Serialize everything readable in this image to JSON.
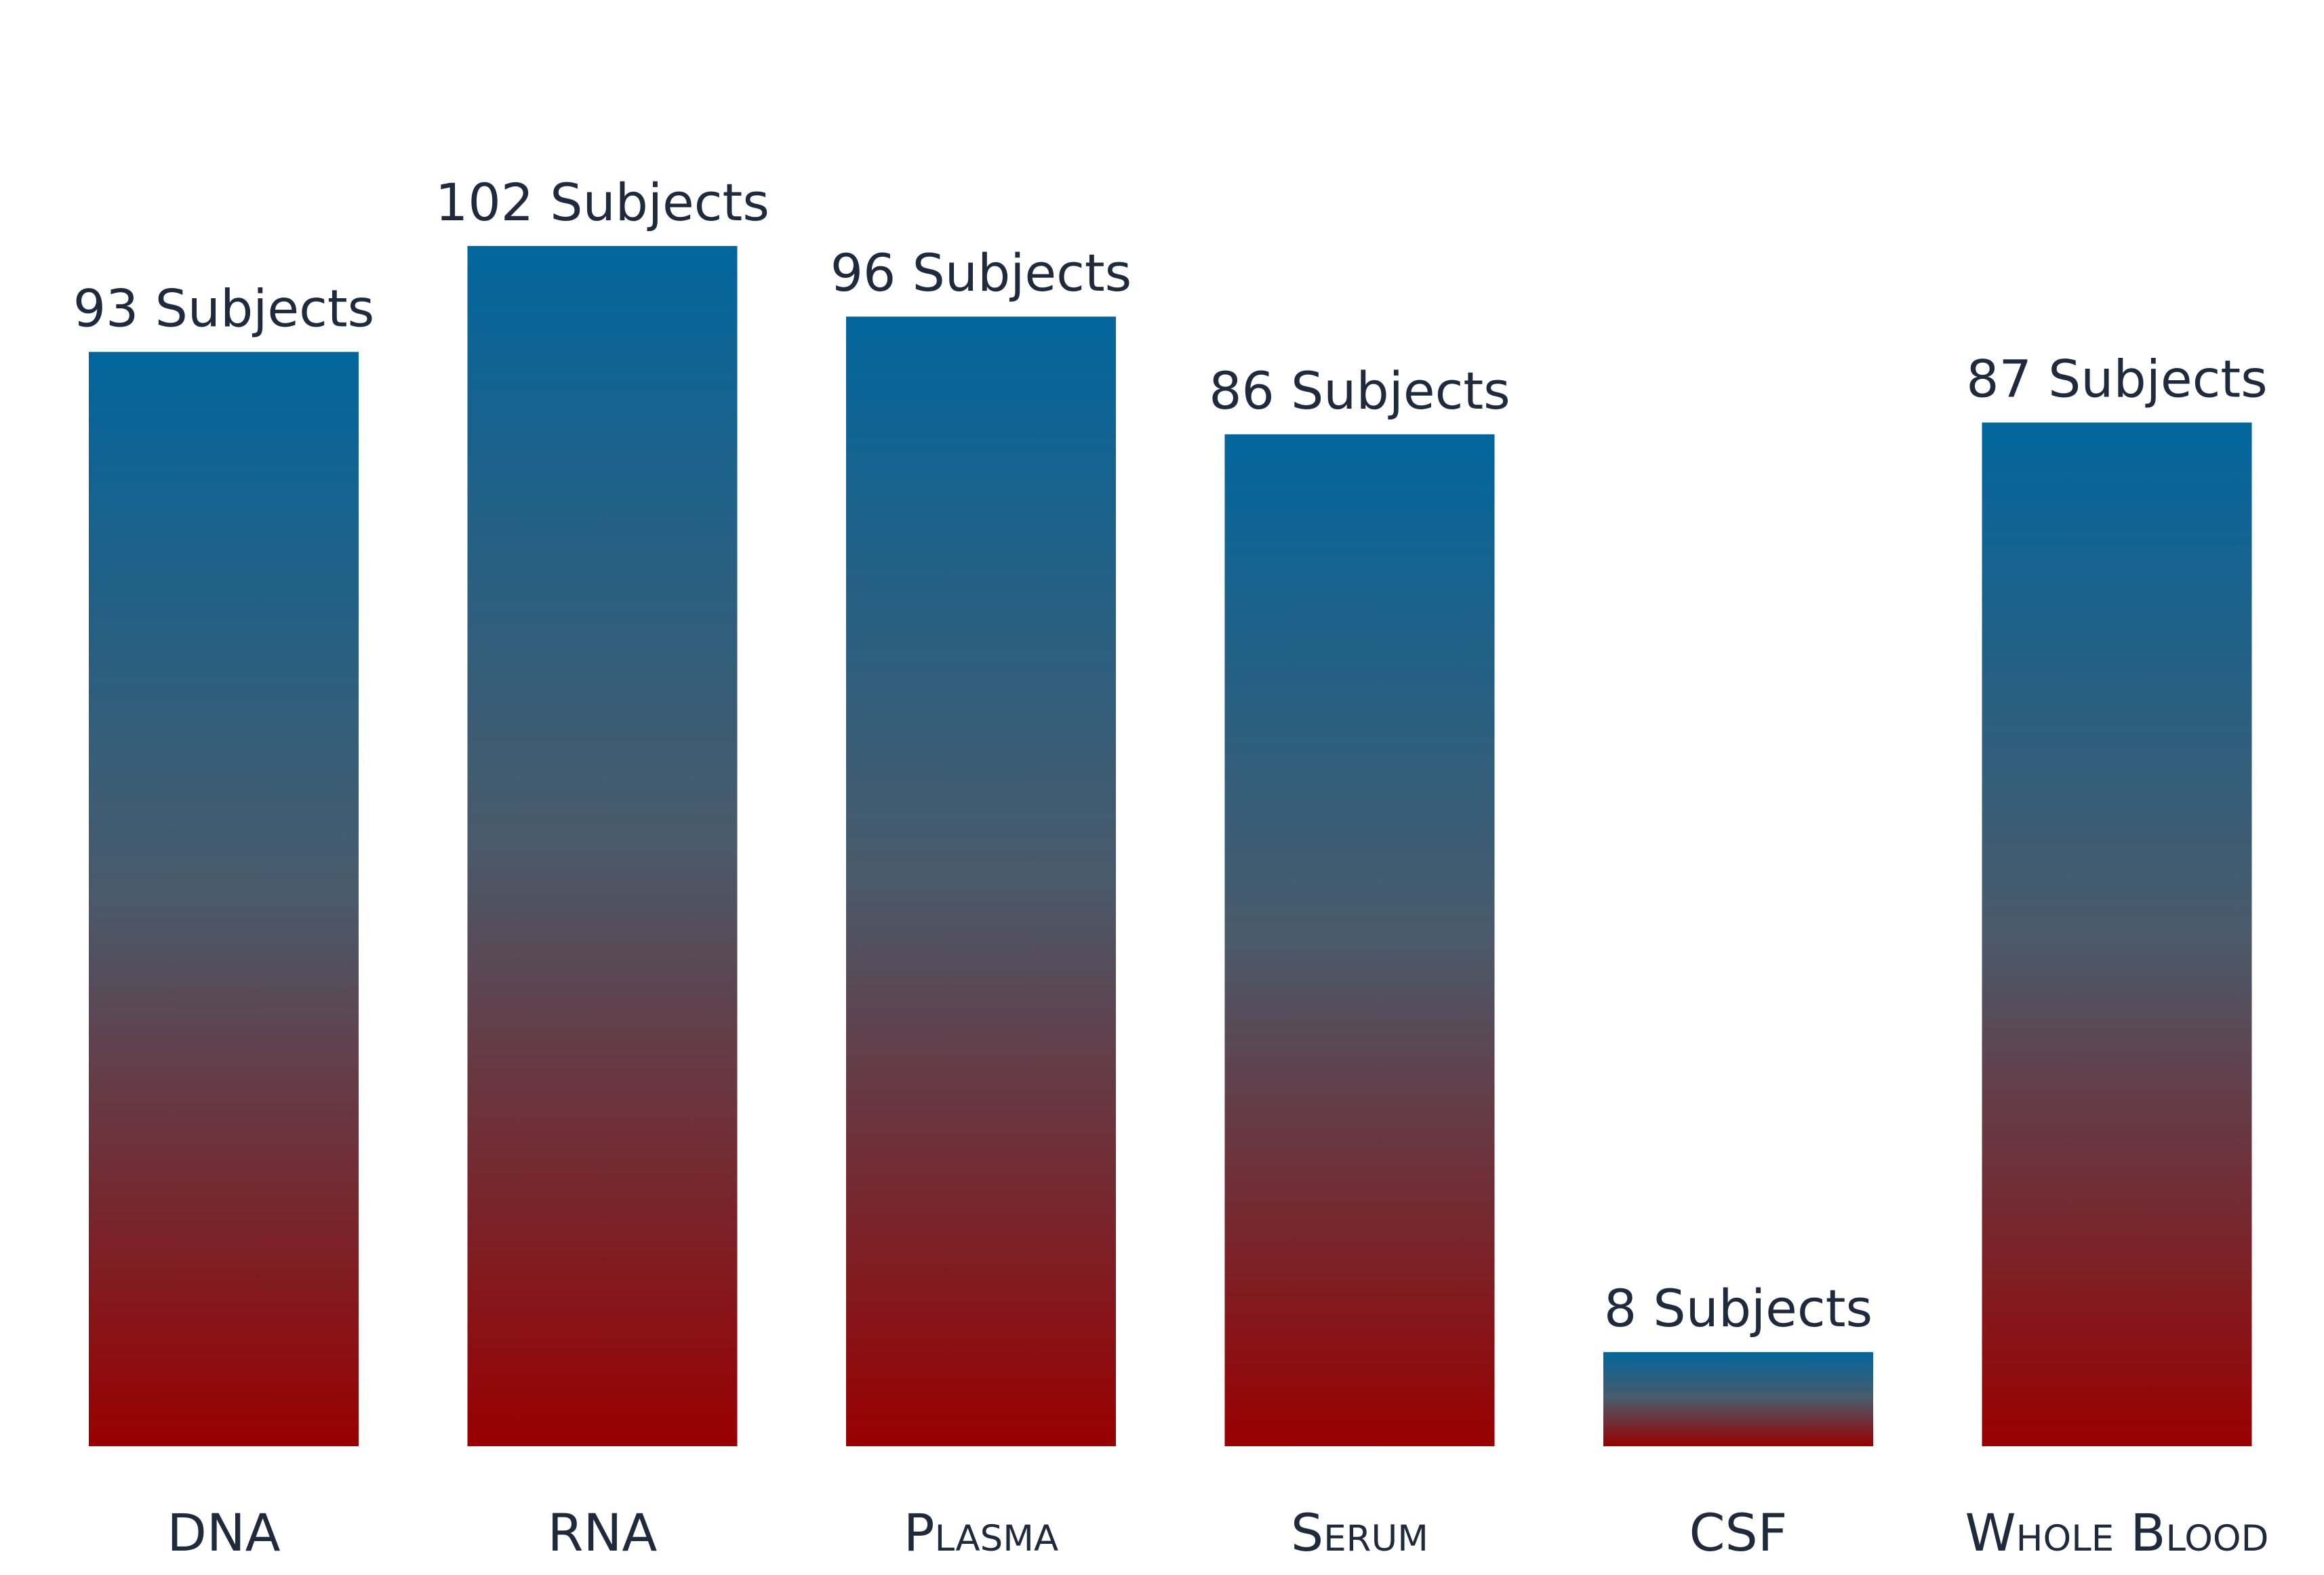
{
  "chart_data": {
    "type": "bar",
    "categories": [
      "DNA",
      "RNA",
      "Plasma",
      "Serum",
      "CSF",
      "Whole Blood"
    ],
    "values": [
      93,
      102,
      96,
      86,
      8,
      87
    ],
    "data_labels": [
      "93 Subjects",
      "102 Subjects",
      "96 Subjects",
      "86 Subjects",
      "8 Subjects",
      "87 Subjects"
    ],
    "ylim": [
      0,
      102
    ],
    "grid": false,
    "legend": "none",
    "colors": {
      "gradient_top": "#02669d",
      "gradient_mid": "#4a5a6a",
      "gradient_bottom": "#990000",
      "label_text": "#1f2a3c"
    }
  }
}
